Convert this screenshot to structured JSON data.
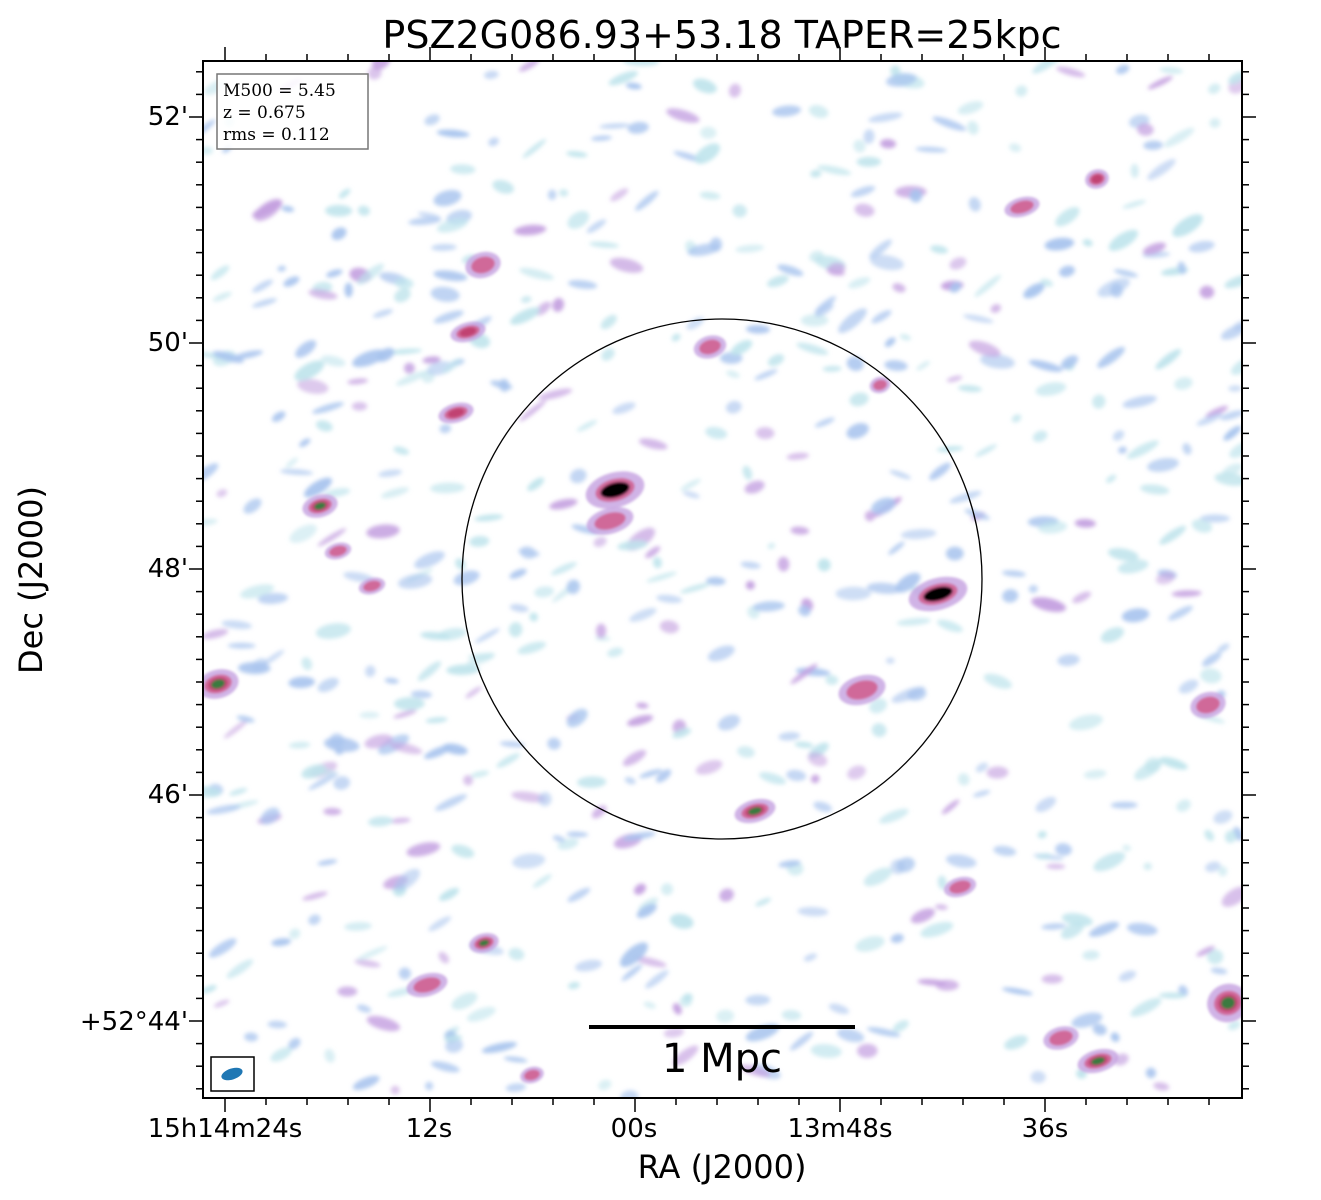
{
  "title": "PSZ2G086.93+53.18 TAPER=25kpc",
  "info_box": {
    "m500": "M500 = 5.45",
    "z": "z = 0.675",
    "rms": "rms = 0.112"
  },
  "axes": {
    "xlabel": "RA (J2000)",
    "ylabel": "Dec (J2000)",
    "x_ticks": [
      "15h14m24s",
      "12s",
      "00s",
      "13m48s",
      "36s"
    ],
    "y_ticks": [
      "52'",
      "50'",
      "48'",
      "46'",
      "+52°44'"
    ]
  },
  "scale_bar": {
    "label": "1 Mpc"
  },
  "colors": {
    "frame": "#000000",
    "beam": "#1f77b4",
    "noise_light": "#bfe4ec",
    "noise_blue": "#a8c4ee",
    "noise_purple": "#c4a0e0",
    "source_pink": "#d06090",
    "source_red": "#c04070",
    "source_green": "#3a7a40",
    "source_core": "#000000"
  }
}
